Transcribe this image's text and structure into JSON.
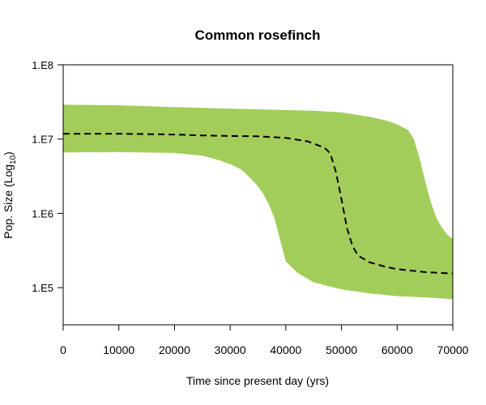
{
  "chart_data": {
    "type": "area",
    "title": "Common rosefinch",
    "xlabel": "Time since present day (yrs)",
    "ylabel": "Pop. Size (Log",
    "ylabel_subscript": "10",
    "ylabel_suffix": ")",
    "x_scale": "linear",
    "y_scale": "log",
    "xlim": [
      0,
      70000
    ],
    "ylim": [
      31622,
      100000000
    ],
    "x_ticks": [
      0,
      10000,
      20000,
      30000,
      40000,
      50000,
      60000,
      70000
    ],
    "x_tick_labels": [
      "0",
      "10000",
      "20000",
      "30000",
      "40000",
      "50000",
      "60000",
      "70000"
    ],
    "y_ticks": [
      100000,
      1000000,
      10000000,
      100000000
    ],
    "y_tick_labels": [
      "1.E5",
      "1.E6",
      "1.E7",
      "1.E8"
    ],
    "band_color": "#a2cd5a",
    "line_color": "#000000",
    "series": [
      {
        "role": "upper_bound",
        "points": [
          [
            0,
            29000000
          ],
          [
            10000,
            28500000
          ],
          [
            20000,
            27000000
          ],
          [
            30000,
            25700000
          ],
          [
            40000,
            24600000
          ],
          [
            45000,
            24000000
          ],
          [
            50000,
            22900000
          ],
          [
            55000,
            20000000
          ],
          [
            58000,
            17800000
          ],
          [
            60000,
            15800000
          ],
          [
            62000,
            13200000
          ],
          [
            63000,
            10000000
          ],
          [
            64000,
            5600000
          ],
          [
            65000,
            2800000
          ],
          [
            66000,
            1450000
          ],
          [
            67000,
            890000
          ],
          [
            68000,
            650000
          ],
          [
            69000,
            520000
          ],
          [
            70000,
            450000
          ]
        ]
      },
      {
        "role": "median",
        "points": [
          [
            0,
            11800000
          ],
          [
            10000,
            11800000
          ],
          [
            20000,
            11500000
          ],
          [
            25000,
            11200000
          ],
          [
            30000,
            11000000
          ],
          [
            35000,
            10900000
          ],
          [
            40000,
            10400000
          ],
          [
            44000,
            9300000
          ],
          [
            47000,
            7600000
          ],
          [
            48000,
            6400000
          ],
          [
            49000,
            3600000
          ],
          [
            50000,
            1550000
          ],
          [
            51000,
            630000
          ],
          [
            52000,
            360000
          ],
          [
            53000,
            270000
          ],
          [
            55000,
            220000
          ],
          [
            58000,
            190000
          ],
          [
            60000,
            178000
          ],
          [
            65000,
            162000
          ],
          [
            70000,
            155000
          ]
        ]
      },
      {
        "role": "lower_bound",
        "points": [
          [
            0,
            6600000
          ],
          [
            10000,
            6700000
          ],
          [
            20000,
            6500000
          ],
          [
            25000,
            6000000
          ],
          [
            28000,
            5200000
          ],
          [
            30000,
            4600000
          ],
          [
            32000,
            3900000
          ],
          [
            34000,
            2800000
          ],
          [
            35000,
            2300000
          ],
          [
            36000,
            1800000
          ],
          [
            37000,
            1300000
          ],
          [
            38000,
            840000
          ],
          [
            39000,
            430000
          ],
          [
            40000,
            225000
          ],
          [
            42000,
            160000
          ],
          [
            45000,
            118000
          ],
          [
            50000,
            95000
          ],
          [
            55000,
            84000
          ],
          [
            60000,
            77000
          ],
          [
            65000,
            74000
          ],
          [
            70000,
            70000
          ]
        ]
      }
    ]
  }
}
